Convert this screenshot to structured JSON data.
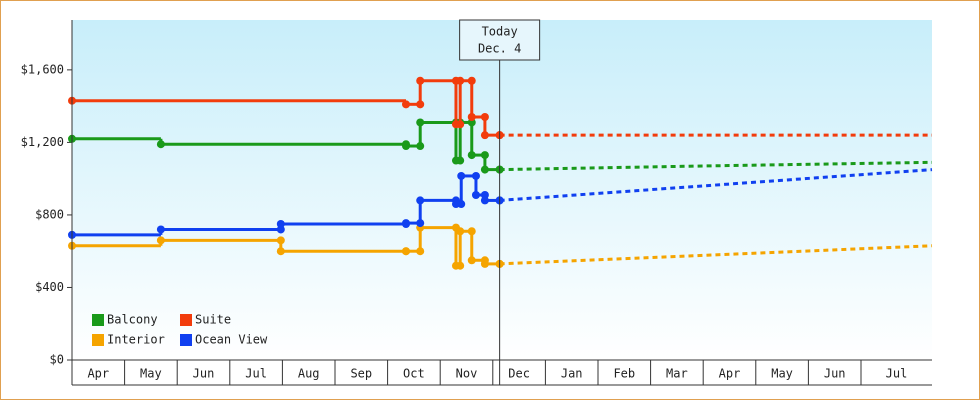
{
  "chart_data": {
    "type": "step-line",
    "xlim": [
      0,
      16.35
    ],
    "xticks": [
      {
        "value": 0,
        "label": "Apr"
      },
      {
        "value": 1,
        "label": "May"
      },
      {
        "value": 2,
        "label": "Jun"
      },
      {
        "value": 3,
        "label": "Jul"
      },
      {
        "value": 4,
        "label": "Aug"
      },
      {
        "value": 5,
        "label": "Sep"
      },
      {
        "value": 6,
        "label": "Oct"
      },
      {
        "value": 7,
        "label": "Nov"
      },
      {
        "value": 8,
        "label": "Dec"
      },
      {
        "value": 9,
        "label": "Jan"
      },
      {
        "value": 10,
        "label": "Feb"
      },
      {
        "value": 11,
        "label": "Mar"
      },
      {
        "value": 12,
        "label": "Apr"
      },
      {
        "value": 13,
        "label": "May"
      },
      {
        "value": 14,
        "label": "Jun"
      },
      {
        "value": 15,
        "label": "Jul"
      }
    ],
    "ylim": [
      0,
      1875
    ],
    "yticks": [
      {
        "value": 0,
        "label": "$0"
      },
      {
        "value": 400,
        "label": "$400"
      },
      {
        "value": 800,
        "label": "$800"
      },
      {
        "value": 1200,
        "label": "$1,200"
      },
      {
        "value": 1600,
        "label": "$1,600"
      }
    ],
    "today": {
      "x": 8.13,
      "label": "Today",
      "date": "Dec. 4"
    },
    "series": [
      {
        "name": "Balcony",
        "color": "#1a9a1a",
        "x": [
          0,
          1.69,
          6.35,
          6.62,
          7.3,
          7.38,
          7.6,
          7.85,
          8.13
        ],
        "values": [
          1220,
          1190,
          1180,
          1310,
          1100,
          1310,
          1130,
          1050,
          1050
        ],
        "forecast_x": [
          8.13,
          12,
          16.35
        ],
        "forecast_values": [
          1050,
          1070,
          1090
        ]
      },
      {
        "name": "Suite",
        "color": "#f23c0c",
        "x": [
          0,
          6.35,
          6.62,
          7.3,
          7.38,
          7.6,
          7.85,
          8.13
        ],
        "values": [
          1430,
          1410,
          1540,
          1300,
          1540,
          1340,
          1240,
          1240
        ],
        "forecast_x": [
          8.13,
          16.35
        ],
        "forecast_values": [
          1240,
          1240
        ]
      },
      {
        "name": "Interior",
        "color": "#f5a400",
        "x": [
          0,
          1.69,
          3.97,
          6.35,
          6.62,
          7.3,
          7.38,
          7.6,
          7.85,
          8.13
        ],
        "values": [
          630,
          660,
          600,
          600,
          730,
          520,
          710,
          550,
          530,
          530
        ],
        "forecast_x": [
          8.13,
          16.35
        ],
        "forecast_values": [
          530,
          630
        ]
      },
      {
        "name": "Ocean View",
        "color": "#1040f0",
        "x": [
          0,
          1.69,
          3.97,
          6.35,
          6.62,
          7.3,
          7.4,
          7.68,
          7.85,
          8.13
        ],
        "values": [
          690,
          720,
          750,
          755,
          880,
          860,
          1015,
          910,
          880,
          880
        ],
        "forecast_x": [
          8.13,
          16.35
        ],
        "forecast_values": [
          880,
          1050
        ]
      }
    ]
  }
}
